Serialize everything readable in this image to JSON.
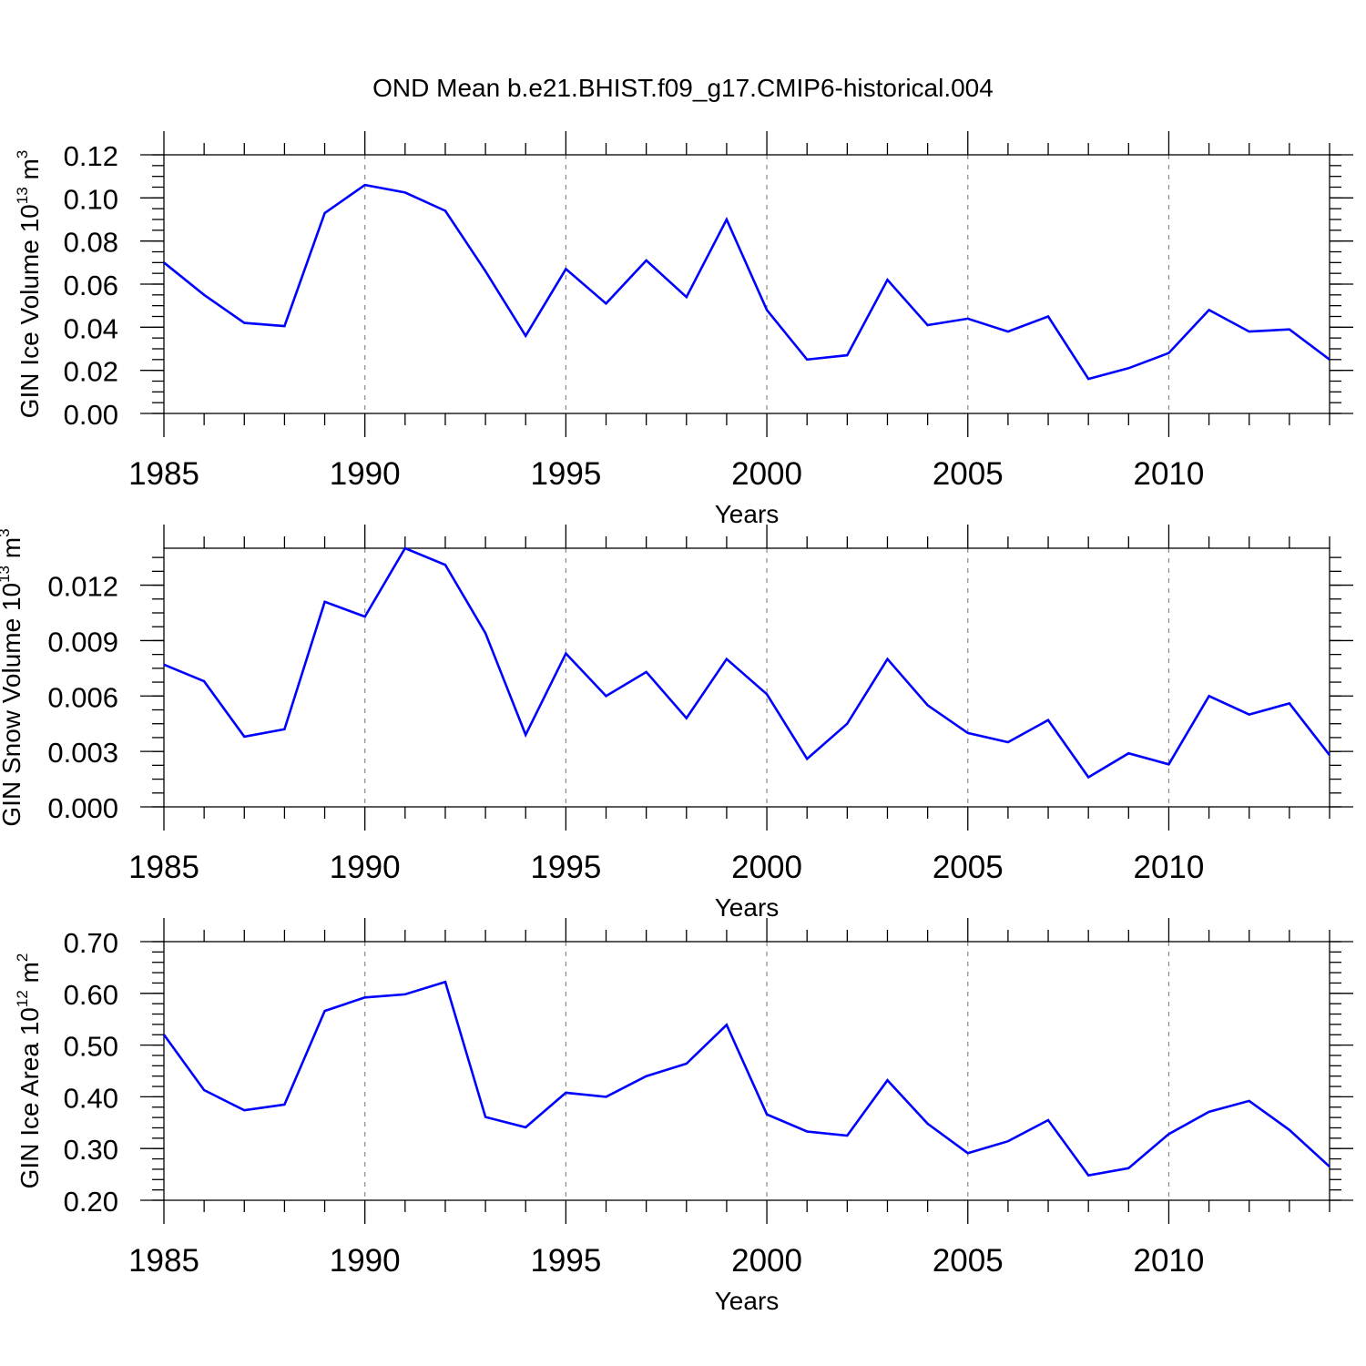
{
  "title": "OND Mean b.e21.BHIST.f09_g17.CMIP6-historical.004",
  "colors": {
    "series": "#0000ff",
    "grid": "#8a8a8a",
    "axis": "#000000"
  },
  "chart_data": [
    {
      "type": "line",
      "xlabel": "Years",
      "ylabel": {
        "text": "GIN Ice Volume 10",
        "exp": "13",
        "unit": " m",
        "unit_exp": "3"
      },
      "xlim": [
        1985,
        2014
      ],
      "ylim": [
        0.0,
        0.12
      ],
      "xticks": [
        1985,
        1990,
        1995,
        2000,
        2005,
        2010
      ],
      "yticks": [
        "0.00",
        "0.02",
        "0.04",
        "0.06",
        "0.08",
        "0.10",
        "0.12"
      ],
      "yminor_step": 0.005,
      "grid": "vertical dashed at major x ticks",
      "x": [
        1985,
        1986,
        1987,
        1988,
        1989,
        1990,
        1991,
        1992,
        1993,
        1994,
        1995,
        1996,
        1997,
        1998,
        1999,
        2000,
        2001,
        2002,
        2003,
        2004,
        2005,
        2006,
        2007,
        2008,
        2009,
        2010,
        2011,
        2012,
        2013,
        2014
      ],
      "values": [
        0.07,
        0.055,
        0.042,
        0.0405,
        0.093,
        0.106,
        0.1025,
        0.094,
        0.066,
        0.036,
        0.067,
        0.051,
        0.071,
        0.054,
        0.09,
        0.048,
        0.025,
        0.027,
        0.062,
        0.041,
        0.044,
        0.038,
        0.045,
        0.016,
        0.021,
        0.028,
        0.048,
        0.038,
        0.039,
        0.025
      ]
    },
    {
      "type": "line",
      "xlabel": "Years",
      "ylabel": {
        "text": "GIN Snow Volume 10",
        "exp": "13",
        "unit": " m",
        "unit_exp": "3"
      },
      "xlim": [
        1985,
        2014
      ],
      "ylim": [
        0.0,
        0.014
      ],
      "xticks": [
        1985,
        1990,
        1995,
        2000,
        2005,
        2010
      ],
      "yticks": [
        "0.000",
        "0.003",
        "0.006",
        "0.009",
        "0.012"
      ],
      "yminor_step": 0.00075,
      "grid": "vertical dashed at major x ticks",
      "x": [
        1985,
        1986,
        1987,
        1988,
        1989,
        1990,
        1991,
        1992,
        1993,
        1994,
        1995,
        1996,
        1997,
        1998,
        1999,
        2000,
        2001,
        2002,
        2003,
        2004,
        2005,
        2006,
        2007,
        2008,
        2009,
        2010,
        2011,
        2012,
        2013,
        2014
      ],
      "values": [
        0.0077,
        0.0068,
        0.0038,
        0.0042,
        0.0111,
        0.0103,
        0.014,
        0.0131,
        0.0094,
        0.0039,
        0.0083,
        0.006,
        0.0073,
        0.0048,
        0.008,
        0.0061,
        0.0026,
        0.0045,
        0.008,
        0.0055,
        0.004,
        0.0035,
        0.0047,
        0.0016,
        0.0029,
        0.0023,
        0.006,
        0.005,
        0.0056,
        0.0028
      ]
    },
    {
      "type": "line",
      "xlabel": "Years",
      "ylabel": {
        "text": "GIN Ice Area 10",
        "exp": "12",
        "unit": " m",
        "unit_exp": "2"
      },
      "xlim": [
        1985,
        2014
      ],
      "ylim": [
        0.2,
        0.7
      ],
      "xticks": [
        1985,
        1990,
        1995,
        2000,
        2005,
        2010
      ],
      "yticks": [
        "0.20",
        "0.30",
        "0.40",
        "0.50",
        "0.60",
        "0.70"
      ],
      "yminor_step": 0.02,
      "grid": "vertical dashed at major x ticks",
      "x": [
        1985,
        1986,
        1987,
        1988,
        1989,
        1990,
        1991,
        1992,
        1993,
        1994,
        1995,
        1996,
        1997,
        1998,
        1999,
        2000,
        2001,
        2002,
        2003,
        2004,
        2005,
        2006,
        2007,
        2008,
        2009,
        2010,
        2011,
        2012,
        2013,
        2014
      ],
      "values": [
        0.52,
        0.413,
        0.374,
        0.385,
        0.566,
        0.592,
        0.598,
        0.622,
        0.361,
        0.341,
        0.408,
        0.4,
        0.44,
        0.464,
        0.539,
        0.366,
        0.333,
        0.325,
        0.432,
        0.348,
        0.291,
        0.314,
        0.355,
        0.248,
        0.262,
        0.328,
        0.371,
        0.392,
        0.336,
        0.265
      ]
    }
  ]
}
